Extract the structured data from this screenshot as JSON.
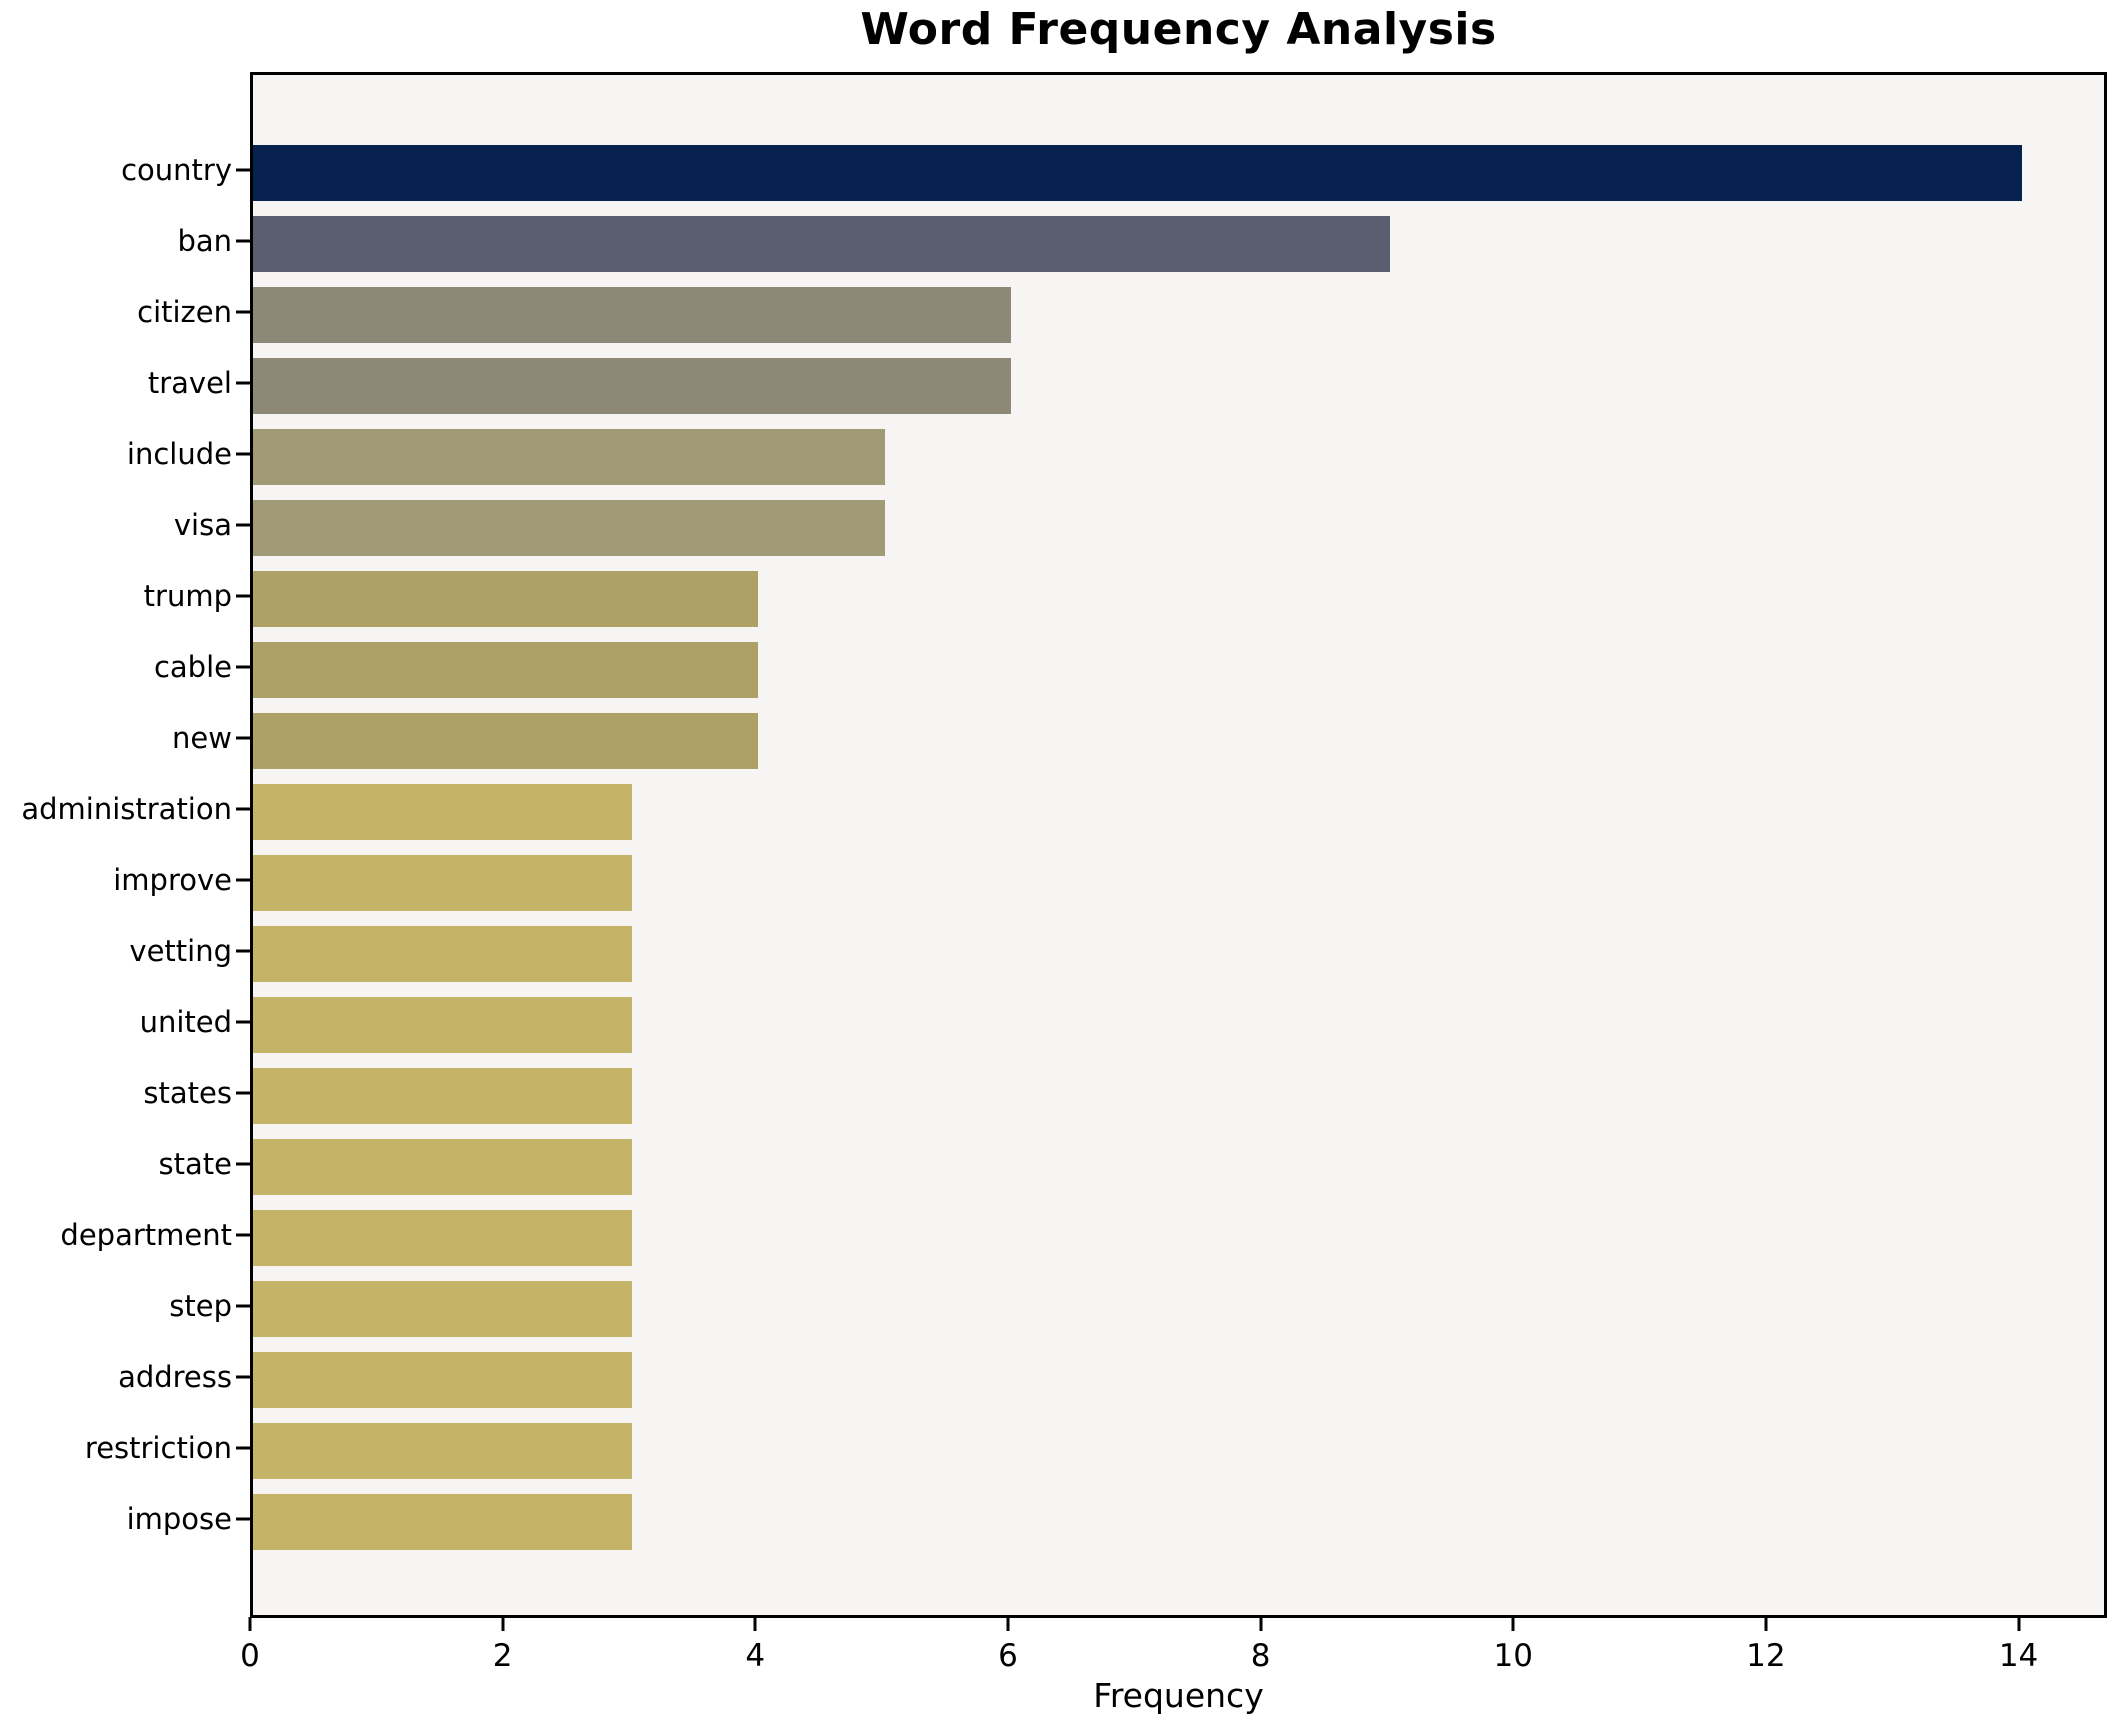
{
  "chart_data": {
    "type": "bar",
    "orientation": "horizontal",
    "title": "Word Frequency Analysis",
    "xlabel": "Frequency",
    "ylabel": "",
    "categories": [
      "country",
      "ban",
      "citizen",
      "travel",
      "include",
      "visa",
      "trump",
      "cable",
      "new",
      "administration",
      "improve",
      "vetting",
      "united",
      "states",
      "state",
      "department",
      "step",
      "address",
      "restriction",
      "impose"
    ],
    "values": [
      14,
      9,
      6,
      6,
      5,
      5,
      4,
      4,
      4,
      3,
      3,
      3,
      3,
      3,
      3,
      3,
      3,
      3,
      3,
      3
    ],
    "bar_colors": [
      "#07224e",
      "#5a5e6e",
      "#8e8877",
      "#8e8877",
      "#a09a75",
      "#a09a75",
      "#ada167",
      "#ada167",
      "#ada167",
      "#c3b467",
      "#c3b467",
      "#c3b467",
      "#c3b467",
      "#c3b467",
      "#c3b467",
      "#c3b467",
      "#c3b467",
      "#c3b467",
      "#c3b467",
      "#c3b467"
    ],
    "xlim": [
      0,
      14.7
    ],
    "xticks": [
      0,
      2,
      4,
      6,
      8,
      10,
      12,
      14
    ],
    "grid": false,
    "legend": "none"
  },
  "colors": {
    "plot_background": "#f6f5f3",
    "figure_background": "#ffffff",
    "spine": "#000000",
    "text": "#000000"
  }
}
